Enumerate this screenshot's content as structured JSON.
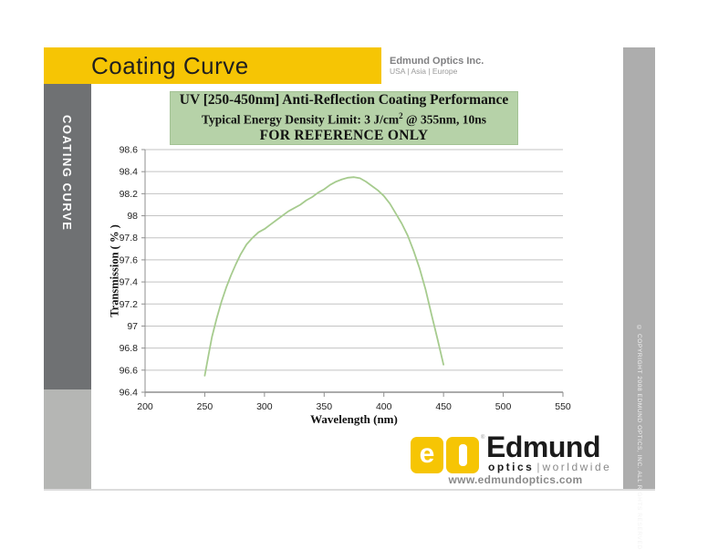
{
  "header": {
    "title": "Coating Curve",
    "company": "Edmund Optics Inc.",
    "regions": "USA | Asia | Europe"
  },
  "sidebar": {
    "label": "COATING CURVE"
  },
  "title_box": {
    "line1": "UV [250-450nm] Anti-Reflection Coating Performance",
    "line2_pre": "Typical Energy Density Limit: 3 J/cm",
    "line2_sup": "2",
    "line2_post": " @ 355nm, 10ns",
    "line3": "FOR REFERENCE ONLY"
  },
  "chart_data": {
    "type": "line",
    "title": "UV [250-450nm] Anti-Reflection Coating Performance",
    "xlabel": "Wavelength (nm)",
    "ylabel": "Transmission ( % )",
    "xlim": [
      200,
      550
    ],
    "ylim": [
      96.4,
      98.6
    ],
    "xticks": [
      200,
      250,
      300,
      350,
      400,
      450,
      500,
      550
    ],
    "yticks": [
      96.4,
      96.6,
      96.8,
      97,
      97.2,
      97.4,
      97.6,
      97.8,
      98,
      98.2,
      98.4,
      98.6
    ],
    "grid": "horizontal",
    "legend": "none",
    "series": [
      {
        "name": "transmission",
        "color": "#a6cb8e",
        "x": [
          250,
          253,
          256,
          260,
          264,
          268,
          272,
          276,
          280,
          285,
          290,
          295,
          300,
          305,
          310,
          315,
          320,
          325,
          330,
          335,
          340,
          345,
          350,
          355,
          360,
          365,
          370,
          375,
          380,
          385,
          390,
          395,
          400,
          405,
          410,
          415,
          420,
          425,
          430,
          435,
          440,
          445,
          450
        ],
        "y": [
          96.55,
          96.73,
          96.9,
          97.07,
          97.22,
          97.35,
          97.46,
          97.56,
          97.65,
          97.74,
          97.8,
          97.85,
          97.88,
          97.92,
          97.96,
          98.0,
          98.04,
          98.07,
          98.1,
          98.14,
          98.17,
          98.21,
          98.24,
          98.28,
          98.31,
          98.33,
          98.345,
          98.35,
          98.34,
          98.31,
          98.27,
          98.23,
          98.18,
          98.11,
          98.02,
          97.93,
          97.82,
          97.68,
          97.52,
          97.33,
          97.1,
          96.88,
          96.65
        ]
      }
    ]
  },
  "footer": {
    "logo_e": "e",
    "brand": "Edmund",
    "sub_left": "optics",
    "sub_sep": "|",
    "sub_right": "worldwide",
    "reg_mark": "®",
    "website": "www.edmundoptics.com"
  },
  "copyright": "© COPYRIGHT 2008 EDMUND OPTICS, INC. ALL RIGHTS RESERVED",
  "colors": {
    "yellow": "#f6c504",
    "sidebar_dark": "#6f7173",
    "sidebar_light": "#b5b6b4",
    "right_strip": "#adadad",
    "green_box": "#b6d2a8",
    "curve": "#a6cb8e",
    "gridline": "#c3c3c3"
  }
}
